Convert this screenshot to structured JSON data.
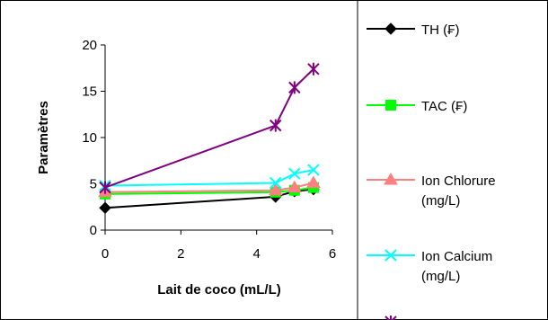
{
  "chart_data": {
    "type": "line",
    "title": "",
    "xlabel": "Lait de coco (mL/L)",
    "ylabel": "Paramètres",
    "xlim": [
      0,
      6
    ],
    "ylim": [
      0,
      20
    ],
    "x_ticks": [
      0,
      2,
      4,
      6
    ],
    "y_ticks": [
      0,
      5,
      10,
      15,
      20
    ],
    "grid": false,
    "legend_position": "right",
    "series": [
      {
        "name": "TH (₣)",
        "color": "#000000",
        "marker": "diamond",
        "x": [
          0,
          4.5,
          5,
          5.5
        ],
        "y": [
          2.4,
          3.6,
          4.2,
          4.4
        ]
      },
      {
        "name": "TAC (₣)",
        "color": "#00ff00",
        "marker": "square",
        "x": [
          0,
          4.5,
          5,
          5.5
        ],
        "y": [
          3.9,
          4.1,
          4.3,
          4.6
        ]
      },
      {
        "name": "Ion Chlorure (mg/L)",
        "color": "#ff8080",
        "marker": "triangle",
        "x": [
          0,
          4.5,
          5,
          5.5
        ],
        "y": [
          4.1,
          4.3,
          4.6,
          5.1
        ]
      },
      {
        "name": "Ion Calcium (mg/L)",
        "color": "#00ffff",
        "marker": "x",
        "x": [
          0,
          4.5,
          5,
          5.5
        ],
        "y": [
          4.8,
          5.1,
          6.1,
          6.5
        ]
      },
      {
        "name": "",
        "color": "#800080",
        "marker": "star",
        "x": [
          0,
          4.5,
          5,
          5.5
        ],
        "y": [
          4.6,
          11.3,
          15.4,
          17.4
        ]
      }
    ]
  }
}
